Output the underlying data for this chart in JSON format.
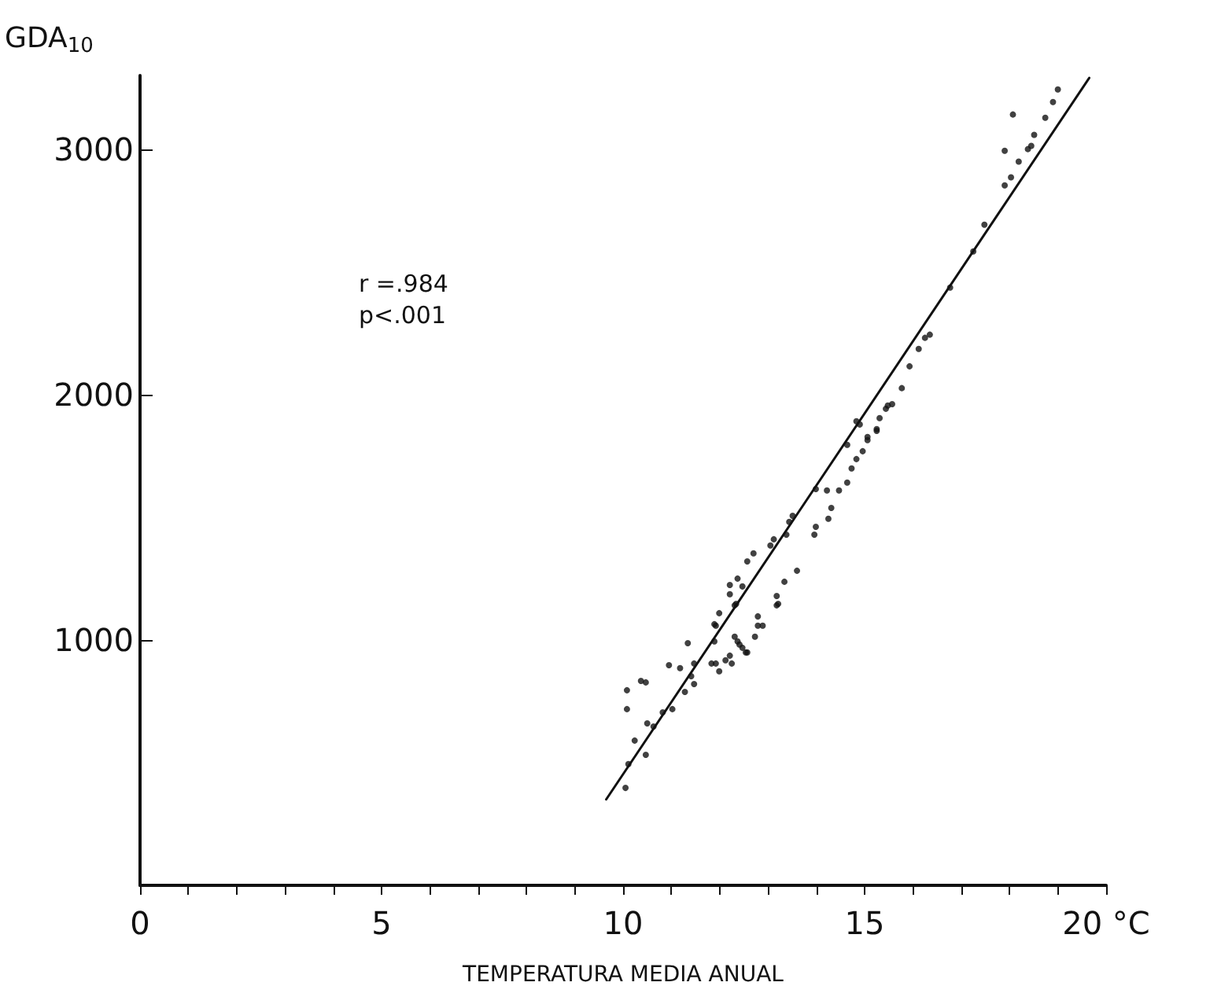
{
  "chart_data": {
    "type": "scatter",
    "xlabel": "TEMPERATURA MEDIA ANUAL",
    "ylabel": "GDA$_{10}$",
    "annotations": [
      "r =.984",
      "p<.001"
    ],
    "xlim": [
      0,
      20
    ],
    "ylim": [
      0,
      3300
    ],
    "xticks": [
      0,
      {
        "value": 1,
        "label": null
      },
      {
        "value": 2,
        "label": null
      },
      {
        "value": 3,
        "label": null
      },
      {
        "value": 4,
        "label": null
      },
      5,
      {
        "value": 6,
        "label": null
      },
      {
        "value": 7,
        "label": null
      },
      {
        "value": 8,
        "label": null
      },
      {
        "value": 9,
        "label": null
      },
      10,
      {
        "value": 11,
        "label": null
      },
      {
        "value": 12,
        "label": null
      },
      {
        "value": 13,
        "label": null
      },
      {
        "value": 14,
        "label": null
      },
      15,
      {
        "value": 16,
        "label": null
      },
      {
        "value": 17,
        "label": null
      },
      {
        "value": 18,
        "label": null
      },
      {
        "value": 19,
        "label": null
      },
      {
        "value": 20,
        "label": "20 °C"
      }
    ],
    "yticks": [
      1000,
      2000,
      3000
    ],
    "grid": false,
    "series": [
      {
        "marker": "circle",
        "color": "#111111",
        "x": [
          10.08,
          10.37,
          10.47,
          10.08,
          10.05,
          10.24,
          10.47,
          10.11,
          10.5,
          10.63,
          10.82,
          11.02,
          10.95,
          11.18,
          11.28,
          11.34,
          11.47,
          11.47,
          11.41,
          11.83,
          11.99,
          11.92,
          12.12,
          12.25,
          12.21,
          12.37,
          12.47,
          12.57,
          11.89,
          11.92,
          11.99,
          12.34,
          12.79,
          12.79,
          12.89,
          12.73,
          13.21,
          11.89,
          12.31,
          12.41,
          12.54,
          13.18,
          13.18,
          13.34,
          13.6,
          12.21,
          12.21,
          12.37,
          12.31,
          12.47,
          12.57,
          12.7,
          13.05,
          13.12,
          13.38,
          13.51,
          13.44,
          13.96,
          13.99,
          14.25,
          14.31,
          13.99,
          14.22,
          14.47,
          14.64,
          14.73,
          14.83,
          14.96,
          15.06,
          15.25,
          15.31,
          14.9,
          14.64,
          15.44,
          14.83,
          15.06,
          15.25,
          15.48,
          15.57,
          15.77,
          15.93,
          16.12,
          16.25,
          16.35,
          16.77,
          17.25,
          17.48,
          17.9,
          18.03,
          18.19,
          17.9,
          18.38,
          18.45,
          18.51,
          18.07,
          18.74,
          18.9,
          19.0
        ],
        "values": [
          795,
          833,
          827,
          718,
          397,
          590,
          532,
          494,
          660,
          647,
          705,
          718,
          897,
          885,
          788,
          987,
          904,
          820,
          852,
          904,
          872,
          904,
          917,
          904,
          936,
          994,
          968,
          949,
          994,
          1058,
          1109,
          1147,
          1096,
          1058,
          1058,
          1013,
          1147,
          1064,
          1013,
          981,
          949,
          1141,
          1179,
          1237,
          1282,
          1224,
          1186,
          1250,
          1141,
          1218,
          1320,
          1353,
          1385,
          1410,
          1429,
          1506,
          1481,
          1429,
          1461,
          1494,
          1538,
          1615,
          1609,
          1609,
          1641,
          1699,
          1737,
          1769,
          1814,
          1859,
          1904,
          1878,
          1795,
          1942,
          1891,
          1827,
          1852,
          1955,
          1961,
          2026,
          2115,
          2186,
          2231,
          2244,
          2436,
          2583,
          2692,
          2852,
          2885,
          2949,
          2993,
          3000,
          3013,
          3058,
          3141,
          3128,
          3192,
          3243
        ]
      },
      {
        "type": "line",
        "color": "#111111",
        "x": [
          9.65,
          19.65
        ],
        "values": [
          350,
          3290
        ]
      }
    ]
  }
}
